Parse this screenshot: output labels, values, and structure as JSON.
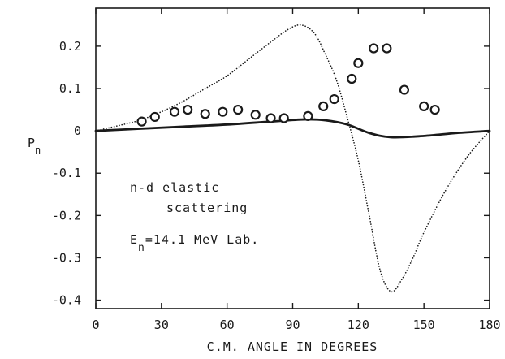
{
  "chart_data": {
    "type": "scatter",
    "xlabel": "C.M. ANGLE IN DEGREES",
    "ylabel": "P",
    "ylabel_sub": "n",
    "xlim": [
      0,
      180
    ],
    "ylim": [
      -0.42,
      0.29
    ],
    "x_ticks": [
      0,
      30,
      60,
      90,
      120,
      150,
      180
    ],
    "x_tick_labels": [
      "0",
      "30",
      "60",
      "90",
      "120",
      "150",
      "180"
    ],
    "y_ticks": [
      0.2,
      0.1,
      0,
      -0.1,
      -0.2,
      -0.3,
      -0.4
    ],
    "y_tick_labels": [
      "0.2",
      "0.1",
      "0",
      "-0.1",
      "-0.2",
      "-0.3",
      "-0.4"
    ],
    "grid": false,
    "annotations": {
      "line1": "n-d elastic",
      "line2": "scattering",
      "energy_prefix": "E",
      "energy_sub": "n",
      "energy_suffix": "=14.1 MeV Lab."
    },
    "series": [
      {
        "style": "markers-open-circle",
        "x": [
          21,
          27,
          36,
          42,
          50,
          58,
          65,
          73,
          80,
          86,
          97,
          104,
          109,
          117,
          120,
          127,
          133,
          141,
          150,
          155
        ],
        "y": [
          0.022,
          0.033,
          0.045,
          0.05,
          0.04,
          0.045,
          0.05,
          0.038,
          0.03,
          0.03,
          0.035,
          0.058,
          0.075,
          0.123,
          0.16,
          0.195,
          0.195,
          0.097,
          0.058,
          0.05
        ]
      },
      {
        "style": "solid-line",
        "x": [
          0,
          20,
          40,
          60,
          80,
          95,
          105,
          115,
          125,
          135,
          150,
          165,
          180
        ],
        "y": [
          0,
          0.005,
          0.01,
          0.015,
          0.022,
          0.027,
          0.025,
          0.015,
          -0.005,
          -0.015,
          -0.012,
          -0.005,
          0
        ]
      },
      {
        "style": "dotted-line",
        "x": [
          0,
          10,
          20,
          30,
          40,
          50,
          60,
          70,
          80,
          88,
          94,
          100,
          105,
          110,
          115,
          120,
          125,
          130,
          135,
          140,
          145,
          150,
          160,
          170,
          180
        ],
        "y": [
          0,
          0.012,
          0.025,
          0.045,
          0.07,
          0.1,
          0.13,
          0.17,
          0.21,
          0.24,
          0.25,
          0.23,
          0.18,
          0.12,
          0.03,
          -0.07,
          -0.2,
          -0.33,
          -0.38,
          -0.35,
          -0.3,
          -0.24,
          -0.14,
          -0.06,
          0
        ]
      }
    ]
  }
}
